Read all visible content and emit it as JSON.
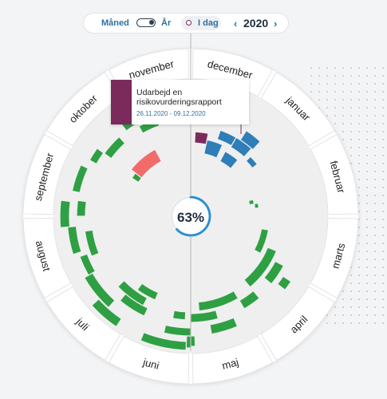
{
  "toolbar": {
    "month_label": "Måned",
    "year_label": "År",
    "today_label": "I dag",
    "year": "2020",
    "prev": "‹",
    "next": "›"
  },
  "tooltip": {
    "title": "Udarbejd en risikovurderingsrapport",
    "dates": "26.11.2020 - 09.12.2020",
    "color": "#7b2a5c"
  },
  "progress": {
    "label": "63%",
    "value": 0.63
  },
  "months": [
    "januar",
    "februar",
    "marts",
    "april",
    "maj",
    "juni",
    "juli",
    "august",
    "september",
    "oktober",
    "november",
    "december"
  ],
  "colors": {
    "green": "#2ea043",
    "blue": "#2f7eb8",
    "red": "#f26b6b",
    "purple": "#7b2a5c",
    "accent": "#2f6f9f"
  }
}
